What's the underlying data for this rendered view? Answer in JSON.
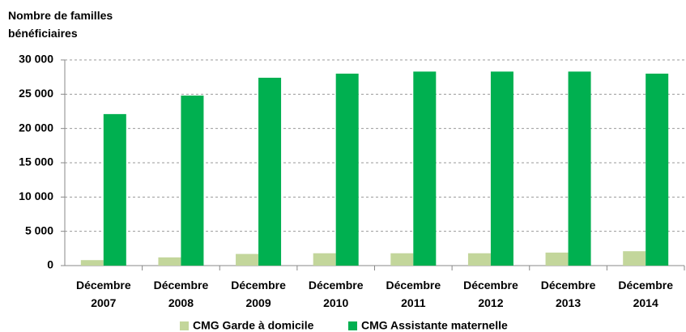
{
  "chart_data": {
    "type": "bar",
    "title": "Nombre de familles bénéficiaires",
    "categories": [
      "Décembre 2007",
      "Décembre 2008",
      "Décembre 2009",
      "Décembre 2010",
      "Décembre 2011",
      "Décembre 2012",
      "Décembre 2013",
      "Décembre 2014"
    ],
    "series": [
      {
        "name": "CMG Garde à domicile",
        "color": "#c3d69b",
        "values": [
          800,
          1200,
          1700,
          1800,
          1800,
          1800,
          1900,
          2100
        ]
      },
      {
        "name": "CMG Assistante maternelle",
        "color": "#00b050",
        "values": [
          22100,
          24800,
          27400,
          28000,
          28300,
          28300,
          28300,
          28000
        ]
      }
    ],
    "ylim": [
      0,
      30000
    ],
    "yticks": [
      0,
      {
        "value": 5000,
        "label": "5 000"
      },
      {
        "value": 10000,
        "label": "10 000"
      },
      {
        "value": 15000,
        "label": "15 000"
      },
      {
        "value": 20000,
        "label": "20 000"
      },
      {
        "value": 25000,
        "label": "25 000"
      },
      {
        "value": 30000,
        "label": "30 000"
      }
    ],
    "grid": true,
    "legend": "bottom"
  }
}
